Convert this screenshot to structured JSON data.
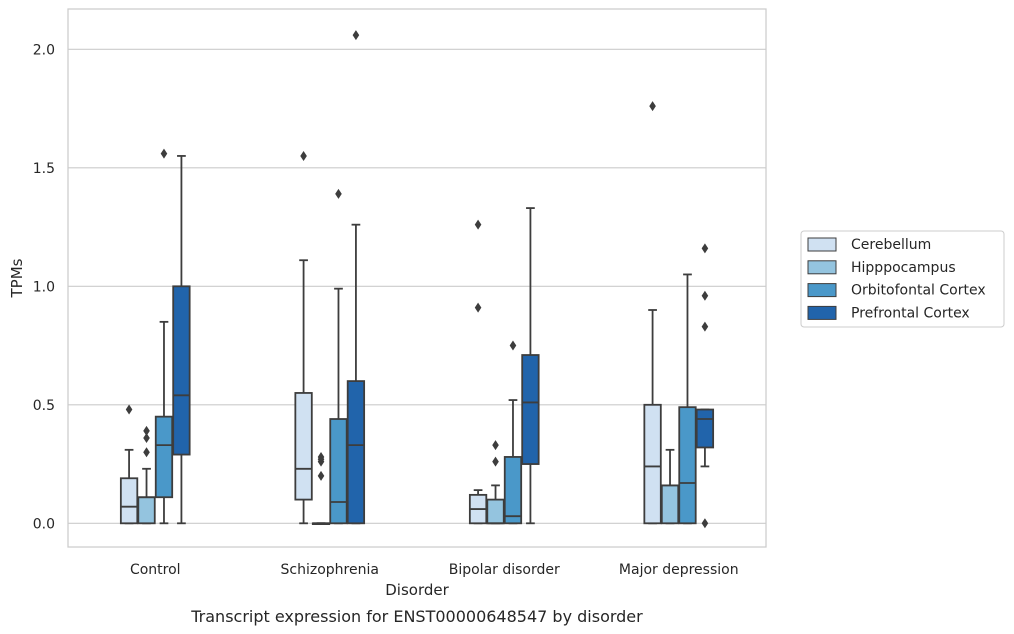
{
  "chart_data": {
    "type": "box",
    "title": "",
    "caption": "Transcript expression for ENST00000648547 by disorder",
    "xlabel": "Disorder",
    "ylabel": "TPMs",
    "ylim": [
      -0.1,
      2.17
    ],
    "yticks": [
      0.0,
      0.5,
      1.0,
      1.5,
      2.0
    ],
    "ytick_labels": [
      "0.0",
      "0.5",
      "1.0",
      "1.5",
      "2.0"
    ],
    "grid": "horizontal",
    "legend_position": "right",
    "categories": [
      "Control",
      "Schizophrenia",
      "Bipolar disorder",
      "Major depression"
    ],
    "series": [
      {
        "name": "Cerebellum",
        "color": "#d0e1f2",
        "boxes": [
          {
            "min": 0.0,
            "q1": 0.0,
            "median": 0.07,
            "q3": 0.19,
            "max": 0.31,
            "outliers": [
              0.48
            ]
          },
          {
            "min": 0.0,
            "q1": 0.1,
            "median": 0.23,
            "q3": 0.55,
            "max": 1.11,
            "outliers": [
              1.55
            ]
          },
          {
            "min": 0.0,
            "q1": 0.0,
            "median": 0.06,
            "q3": 0.12,
            "max": 0.14,
            "outliers": [
              0.91,
              1.26
            ]
          },
          {
            "min": 0.0,
            "q1": 0.0,
            "median": 0.24,
            "q3": 0.5,
            "max": 0.9,
            "outliers": [
              1.76
            ]
          }
        ]
      },
      {
        "name": "Hipppocampus",
        "color": "#94c4df",
        "boxes": [
          {
            "min": 0.0,
            "q1": 0.0,
            "median": 0.11,
            "q3": 0.11,
            "max": 0.23,
            "outliers": [
              0.3,
              0.36,
              0.39
            ]
          },
          {
            "min": 0.0,
            "q1": 0.0,
            "median": 0.0,
            "q3": 0.0,
            "max": 0.0,
            "outliers": [
              0.2,
              0.26,
              0.27,
              0.28
            ]
          },
          {
            "min": 0.0,
            "q1": 0.0,
            "median": 0.0,
            "q3": 0.1,
            "max": 0.16,
            "outliers": [
              0.26,
              0.33
            ]
          },
          {
            "min": 0.0,
            "q1": 0.0,
            "median": 0.16,
            "q3": 0.16,
            "max": 0.31,
            "outliers": []
          }
        ]
      },
      {
        "name": "Orbitofontal Cortex",
        "color": "#4a98c9",
        "boxes": [
          {
            "min": 0.0,
            "q1": 0.11,
            "median": 0.33,
            "q3": 0.45,
            "max": 0.85,
            "outliers": [
              1.56
            ]
          },
          {
            "min": 0.0,
            "q1": 0.0,
            "median": 0.09,
            "q3": 0.44,
            "max": 0.99,
            "outliers": [
              1.39
            ]
          },
          {
            "min": 0.0,
            "q1": 0.0,
            "median": 0.03,
            "q3": 0.28,
            "max": 0.52,
            "outliers": [
              0.75
            ]
          },
          {
            "min": 0.0,
            "q1": 0.0,
            "median": 0.17,
            "q3": 0.49,
            "max": 1.05,
            "outliers": []
          }
        ]
      },
      {
        "name": "Prefrontal Cortex",
        "color": "#2164ab",
        "boxes": [
          {
            "min": 0.0,
            "q1": 0.29,
            "median": 0.54,
            "q3": 1.0,
            "max": 1.55,
            "outliers": []
          },
          {
            "min": 0.0,
            "q1": 0.0,
            "median": 0.33,
            "q3": 0.6,
            "max": 1.26,
            "outliers": [
              2.06
            ]
          },
          {
            "min": 0.0,
            "q1": 0.25,
            "median": 0.51,
            "q3": 0.71,
            "max": 1.33,
            "outliers": []
          },
          {
            "min": 0.24,
            "q1": 0.32,
            "median": 0.44,
            "q3": 0.48,
            "max": 0.48,
            "outliers": [
              0.0,
              0.83,
              0.96,
              1.16
            ]
          }
        ]
      }
    ]
  }
}
